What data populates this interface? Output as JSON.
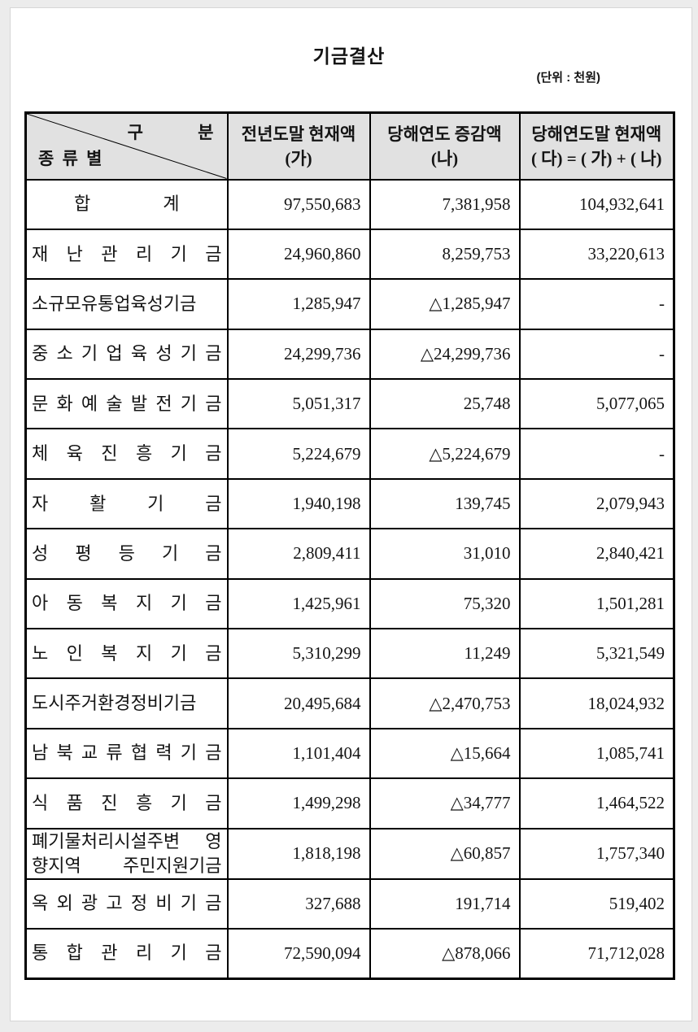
{
  "title": "기금결산",
  "unit_note": "(단위 : 천원)",
  "colors": {
    "frame_bg": "#ececec",
    "page_bg": "#ffffff",
    "header_bg": "#e1e1e1",
    "border": "#000000",
    "text": "#141414"
  },
  "table": {
    "corner": {
      "top_label": "구 분",
      "bottom_label": "종 류 별"
    },
    "columns": [
      {
        "line1": "전년도말 현재액",
        "line2": "(가)"
      },
      {
        "line1": "당해연도 증감액",
        "line2": "(나)"
      },
      {
        "line1": "당해연도말 현재액",
        "line2": "( 다) = ( 가) + ( 나)"
      }
    ],
    "rows": [
      {
        "name": "합 계",
        "total": true,
        "prev": "97,550,683",
        "change": "7,381,958",
        "end": "104,932,641"
      },
      {
        "name": "재 난 관 리 기 금",
        "prev": "24,960,860",
        "change": "8,259,753",
        "end": "33,220,613"
      },
      {
        "name": "소규모유통업육성기금",
        "prev": "1,285,947",
        "change": "△1,285,947",
        "end": "-"
      },
      {
        "name": "중 소 기 업 육 성 기 금",
        "prev": "24,299,736",
        "change": "△24,299,736",
        "end": "-"
      },
      {
        "name": "문 화 예 술 발 전 기 금",
        "prev": "5,051,317",
        "change": "25,748",
        "end": "5,077,065"
      },
      {
        "name": "체 육 진 흥 기 금",
        "prev": "5,224,679",
        "change": "△5,224,679",
        "end": "-"
      },
      {
        "name": "자 활 기 금",
        "prev": "1,940,198",
        "change": "139,745",
        "end": "2,079,943"
      },
      {
        "name": "성 평 등 기 금",
        "prev": "2,809,411",
        "change": "31,010",
        "end": "2,840,421"
      },
      {
        "name": "아 동 복 지 기 금",
        "prev": "1,425,961",
        "change": "75,320",
        "end": "1,501,281"
      },
      {
        "name": "노 인 복 지 기 금",
        "prev": "5,310,299",
        "change": "11,249",
        "end": "5,321,549"
      },
      {
        "name": "도시주거환경정비기금",
        "prev": "20,495,684",
        "change": "△2,470,753",
        "end": "18,024,932"
      },
      {
        "name": "남 북 교 류 협 력 기 금",
        "prev": "1,101,404",
        "change": "△15,664",
        "end": "1,085,741"
      },
      {
        "name": "식 품 진 흥 기 금",
        "prev": "1,499,298",
        "change": "△34,777",
        "end": "1,464,522"
      },
      {
        "name": "폐기물처리시설주변 영\n향지역 주민지원기금",
        "prev": "1,818,198",
        "change": "△60,857",
        "end": "1,757,340"
      },
      {
        "name": "옥 외 광 고 정 비 기 금",
        "prev": "327,688",
        "change": "191,714",
        "end": "519,402"
      },
      {
        "name": "통 합 관 리 기 금",
        "prev": "72,590,094",
        "change": "△878,066",
        "end": "71,712,028"
      }
    ]
  }
}
